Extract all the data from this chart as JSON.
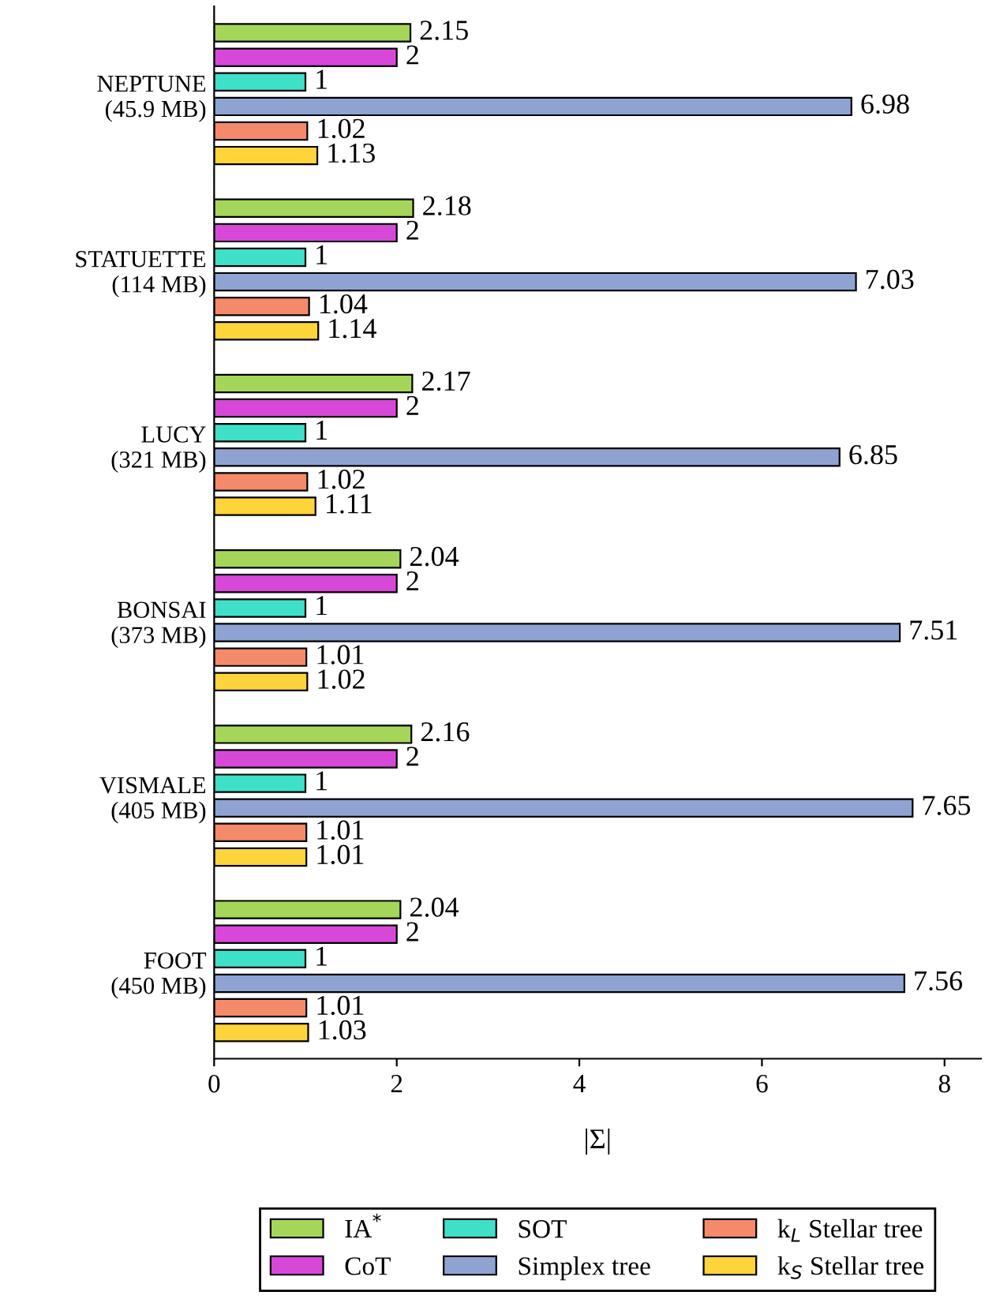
{
  "chart_data": {
    "type": "bar",
    "orientation": "horizontal",
    "xlabel": "|Σ|",
    "categories": [
      "NEPTUNE\n(45.9 MB)",
      "STATUETTE\n(114 MB)",
      "LUCY\n(321 MB)",
      "BONSAI\n(373 MB)",
      "VISMALE\n(405 MB)",
      "FOOT\n(450 MB)"
    ],
    "series": [
      {
        "name": "IA$^{*}$",
        "color": "#a5d65a",
        "values": [
          2.15,
          2.18,
          2.17,
          2.04,
          2.16,
          2.04
        ]
      },
      {
        "name": "CoT",
        "color": "#d848d8",
        "values": [
          2,
          2,
          2,
          2,
          2,
          2
        ]
      },
      {
        "name": "SOT",
        "color": "#3fe0c8",
        "values": [
          1,
          1,
          1,
          1,
          1,
          1
        ]
      },
      {
        "name": "Simplex tree",
        "color": "#8fa3d3",
        "values": [
          6.98,
          7.03,
          6.85,
          7.51,
          7.65,
          7.56
        ]
      },
      {
        "name": "k$_{L}$ Stellar tree",
        "color": "#f58a6a",
        "values": [
          1.02,
          1.04,
          1.02,
          1.01,
          1.01,
          1.01
        ]
      },
      {
        "name": "k$_{S}$ Stellar tree",
        "color": "#fdd43a",
        "values": [
          1.13,
          1.14,
          1.11,
          1.02,
          1.01,
          1.03
        ]
      }
    ],
    "xlim": [
      0,
      8.4
    ],
    "xticks": [
      0,
      2,
      4,
      6,
      8
    ],
    "data_labels": true,
    "legend": "bottom",
    "grid": false
  }
}
